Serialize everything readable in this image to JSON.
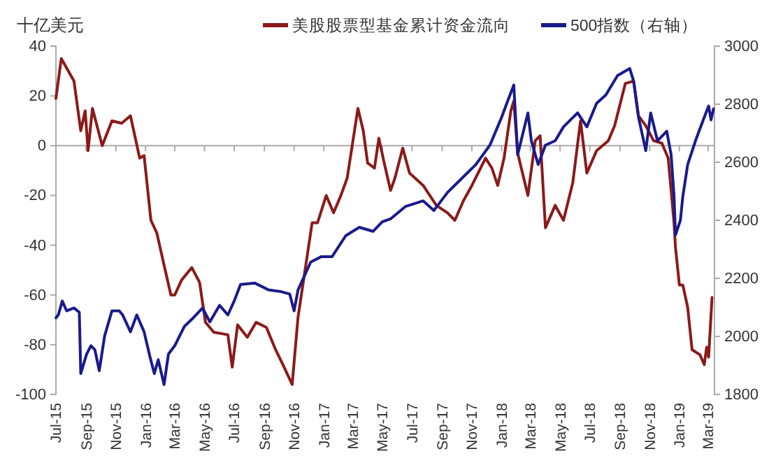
{
  "chart_data": {
    "type": "line",
    "ylabel": "十亿美元",
    "legend": "top",
    "ref_lines": [
      {
        "axis": "y",
        "value": 0,
        "color": "#aaaaaa"
      }
    ],
    "marker": "none",
    "line_style": "solid",
    "xlim": [
      "2015-07-01",
      "2019-03-14"
    ],
    "xticks": [
      {
        "value": "2015-07",
        "label": "Jul-15"
      },
      {
        "value": "2015-09",
        "label": "Sep-15"
      },
      {
        "value": "2015-11",
        "label": "Nov-15"
      },
      {
        "value": "2016-01",
        "label": "Jan-16"
      },
      {
        "value": "2016-03",
        "label": "Mar-16"
      },
      {
        "value": "2016-05",
        "label": "May-16"
      },
      {
        "value": "2016-07",
        "label": "Jul-16"
      },
      {
        "value": "2016-09",
        "label": "Sep-16"
      },
      {
        "value": "2016-11",
        "label": "Nov-16"
      },
      {
        "value": "2017-01",
        "label": "Jan-17"
      },
      {
        "value": "2017-03",
        "label": "Mar-17"
      },
      {
        "value": "2017-05",
        "label": "May-17"
      },
      {
        "value": "2017-07",
        "label": "Jul-17"
      },
      {
        "value": "2017-09",
        "label": "Sep-17"
      },
      {
        "value": "2017-11",
        "label": "Nov-17"
      },
      {
        "value": "2018-01",
        "label": "Jan-18"
      },
      {
        "value": "2018-03",
        "label": "Mar-18"
      },
      {
        "value": "2018-05",
        "label": "May-18"
      },
      {
        "value": "2018-07",
        "label": "Jul-18"
      },
      {
        "value": "2018-09",
        "label": "Sep-18"
      },
      {
        "value": "2018-11",
        "label": "Nov-18"
      },
      {
        "value": "2019-01",
        "label": "Jan-19"
      },
      {
        "value": "2019-03",
        "label": "Mar-19"
      }
    ],
    "ylim": [
      -100,
      40
    ],
    "yticks": [
      -100,
      -80,
      -60,
      -40,
      -20,
      0,
      20,
      40
    ],
    "y2lim": [
      1800,
      3000
    ],
    "y2ticks": [
      1800,
      2000,
      2200,
      2400,
      2600,
      2800,
      3000
    ],
    "series": [
      {
        "name": "美股股票型基金累计资金流向",
        "color": "#8b1a1a",
        "x": [
          "2015-07-01",
          "2015-07-12",
          "2015-08-07",
          "2015-08-21",
          "2015-08-30",
          "2015-09-05",
          "2015-09-14",
          "2015-10-04",
          "2015-10-24",
          "2015-11-13",
          "2015-12-01",
          "2015-12-20",
          "2015-12-29",
          "2016-01-12",
          "2016-01-24",
          "2016-02-08",
          "2016-02-22",
          "2016-03-01",
          "2016-03-15",
          "2016-04-05",
          "2016-04-21",
          "2016-05-03",
          "2016-05-20",
          "2016-06-18",
          "2016-06-27",
          "2016-07-08",
          "2016-07-28",
          "2016-08-15",
          "2016-09-05",
          "2016-09-24",
          "2016-10-09",
          "2016-10-28",
          "2016-11-09",
          "2016-12-08",
          "2016-12-19",
          "2017-01-06",
          "2017-01-21",
          "2017-02-05",
          "2017-02-18",
          "2017-03-12",
          "2017-03-23",
          "2017-04-01",
          "2017-04-15",
          "2017-04-24",
          "2017-05-05",
          "2017-05-18",
          "2017-05-27",
          "2017-06-12",
          "2017-06-26",
          "2017-07-24",
          "2017-08-20",
          "2017-09-12",
          "2017-09-27",
          "2017-10-15",
          "2017-11-01",
          "2017-11-29",
          "2017-12-12",
          "2017-12-24",
          "2018-01-06",
          "2018-01-20",
          "2018-01-26",
          "2018-02-03",
          "2018-02-24",
          "2018-03-11",
          "2018-03-21",
          "2018-04-01",
          "2018-04-21",
          "2018-05-08",
          "2018-05-27",
          "2018-06-12",
          "2018-06-25",
          "2018-07-15",
          "2018-08-08",
          "2018-08-21",
          "2018-09-12",
          "2018-09-29",
          "2018-10-09",
          "2018-10-24",
          "2018-11-09",
          "2018-11-26",
          "2018-12-09",
          "2018-12-21",
          "2018-12-24",
          "2019-01-01",
          "2019-01-08",
          "2019-01-18",
          "2019-01-27",
          "2019-02-12",
          "2019-02-21",
          "2019-02-26",
          "2019-03-02",
          "2019-03-09"
        ],
        "values": [
          19,
          35,
          26,
          6,
          14,
          -2,
          15,
          0,
          10,
          9,
          12,
          -5,
          -4,
          -30,
          -35,
          -48,
          -60,
          -60,
          -54,
          -49,
          -55,
          -71,
          -75,
          -76,
          -89,
          -72,
          -77,
          -71,
          -73,
          -82,
          -88,
          -96,
          -69,
          -31,
          -31,
          -20,
          -27,
          -20,
          -13,
          15,
          6,
          -7,
          -9,
          3,
          -7,
          -18,
          -13,
          -1,
          -11,
          -16,
          -24,
          -27,
          -30,
          -22,
          -16,
          -5,
          -9,
          -16,
          -5,
          14,
          18,
          -3,
          -20,
          2,
          4,
          -33,
          -24,
          -30,
          -15,
          10,
          -11,
          -2,
          2,
          8,
          25,
          26,
          12,
          8,
          2,
          1,
          -5,
          -31,
          -41,
          -56,
          -56,
          -65,
          -82,
          -84,
          -88,
          -81,
          -85,
          -61
        ]
      },
      {
        "name": "500指数（右轴）",
        "color": "#1a1a8c",
        "axis": "y2",
        "x": [
          "2015-07-01",
          "2015-07-06",
          "2015-07-14",
          "2015-07-23",
          "2015-08-07",
          "2015-08-18",
          "2015-08-21",
          "2015-09-02",
          "2015-09-11",
          "2015-09-19",
          "2015-09-28",
          "2015-10-09",
          "2015-10-24",
          "2015-11-08",
          "2015-11-15",
          "2015-12-01",
          "2015-12-14",
          "2015-12-29",
          "2016-01-10",
          "2016-01-19",
          "2016-01-27",
          "2016-02-08",
          "2016-02-17",
          "2016-03-01",
          "2016-03-21",
          "2016-04-08",
          "2016-04-27",
          "2016-05-12",
          "2016-06-01",
          "2016-06-18",
          "2016-07-01",
          "2016-07-14",
          "2016-08-12",
          "2016-09-10",
          "2016-10-03",
          "2016-10-23",
          "2016-11-01",
          "2016-11-09",
          "2016-12-05",
          "2016-12-27",
          "2017-01-18",
          "2017-02-15",
          "2017-03-15",
          "2017-04-12",
          "2017-05-01",
          "2017-05-18",
          "2017-06-18",
          "2017-07-24",
          "2017-08-15",
          "2017-09-12",
          "2017-10-11",
          "2017-11-09",
          "2017-12-08",
          "2018-01-01",
          "2018-01-15",
          "2018-01-26",
          "2018-02-03",
          "2018-02-12",
          "2018-02-24",
          "2018-03-03",
          "2018-03-17",
          "2018-04-01",
          "2018-04-21",
          "2018-05-08",
          "2018-06-06",
          "2018-06-25",
          "2018-07-15",
          "2018-08-03",
          "2018-08-27",
          "2018-09-21",
          "2018-09-29",
          "2018-10-09",
          "2018-10-24",
          "2018-11-03",
          "2018-11-17",
          "2018-12-06",
          "2018-12-15",
          "2018-12-21",
          "2018-12-24",
          "2019-01-03",
          "2019-01-08",
          "2019-01-18",
          "2019-02-03",
          "2019-02-21",
          "2019-03-02",
          "2019-03-07",
          "2019-03-12"
        ],
        "values": [
          2064,
          2074,
          2122,
          2088,
          2098,
          2083,
          1872,
          1939,
          1968,
          1954,
          1882,
          2002,
          2088,
          2088,
          2074,
          2016,
          2074,
          2016,
          1930,
          1872,
          1920,
          1834,
          1939,
          1968,
          2035,
          2064,
          2098,
          2050,
          2107,
          2074,
          2122,
          2179,
          2184,
          2160,
          2155,
          2146,
          2088,
          2160,
          2256,
          2275,
          2275,
          2347,
          2376,
          2362,
          2395,
          2405,
          2448,
          2467,
          2434,
          2496,
          2544,
          2592,
          2659,
          2755,
          2818,
          2866,
          2626,
          2688,
          2770,
          2674,
          2592,
          2659,
          2674,
          2722,
          2770,
          2722,
          2803,
          2832,
          2899,
          2923,
          2880,
          2755,
          2640,
          2770,
          2674,
          2707,
          2626,
          2482,
          2350,
          2400,
          2482,
          2592,
          2674,
          2755,
          2794,
          2746,
          2784
        ]
      }
    ]
  }
}
